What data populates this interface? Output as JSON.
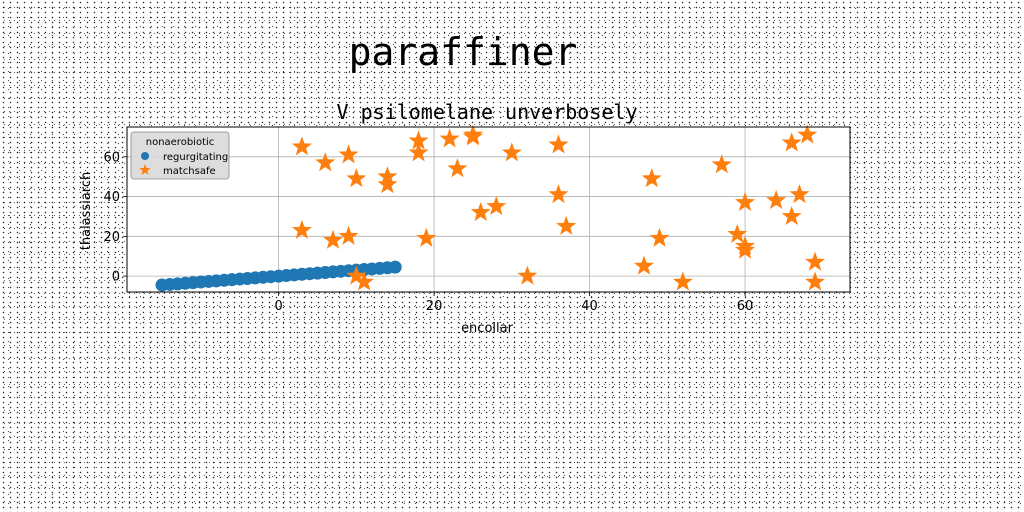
{
  "figure_title": "paraffiner",
  "chart_data": {
    "type": "scatter",
    "title": "V psilomelane unverbosely",
    "xlabel": "encollar",
    "ylabel": "thalassiarch",
    "xlim": [
      -19.5,
      73.5
    ],
    "ylim": [
      -8,
      75
    ],
    "xticks": [
      0,
      20,
      40,
      60
    ],
    "yticks": [
      0,
      20,
      40,
      60
    ],
    "grid": true,
    "legend": {
      "title": "nonaerobiotic",
      "placement": "top-left"
    },
    "series": [
      {
        "name": "regurgitating",
        "marker": "circle",
        "color": "#1f77b4",
        "x": [
          -15,
          -14,
          -13,
          -12,
          -11,
          -10,
          -9,
          -8,
          -7,
          -6,
          -5,
          -4,
          -3,
          -2,
          -1,
          0,
          1,
          2,
          3,
          4,
          5,
          6,
          7,
          8,
          9,
          10,
          11,
          12,
          13,
          14,
          15
        ],
        "y": [
          -4.5,
          -4.2,
          -3.9,
          -3.6,
          -3.3,
          -3.0,
          -2.7,
          -2.4,
          -2.1,
          -1.8,
          -1.5,
          -1.2,
          -0.9,
          -0.6,
          -0.3,
          0.0,
          0.3,
          0.6,
          0.9,
          1.2,
          1.5,
          1.8,
          2.1,
          2.4,
          2.7,
          3.0,
          3.3,
          3.6,
          3.9,
          4.2,
          4.5
        ]
      },
      {
        "name": "matchsafe",
        "marker": "star",
        "color": "#ff7f0e",
        "x": [
          3,
          6,
          9,
          10,
          14,
          14,
          18,
          18,
          22,
          23,
          25,
          25,
          30,
          36,
          36,
          3,
          7,
          9,
          10,
          11,
          19,
          26,
          28,
          32,
          37,
          47,
          48,
          49,
          52,
          57,
          59,
          60,
          60,
          60,
          64,
          66,
          66,
          67,
          68,
          69,
          69
        ],
        "y": [
          65,
          57,
          61,
          49,
          50,
          46,
          68,
          62,
          69,
          54,
          70,
          71,
          62,
          66,
          41,
          23,
          18,
          20,
          0,
          -3,
          19,
          32,
          35,
          0,
          25,
          5,
          49,
          19,
          -3,
          56,
          21,
          37,
          15,
          13,
          38,
          30,
          67,
          41,
          71,
          7,
          -3
        ]
      }
    ]
  }
}
